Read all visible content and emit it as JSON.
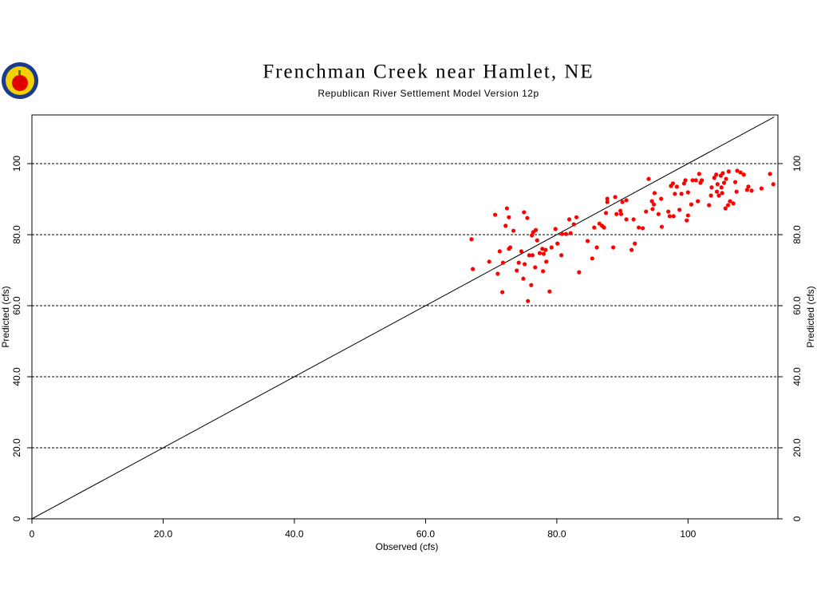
{
  "chart_data": {
    "type": "scatter",
    "title": "Frenchman Creek near Hamlet, NE",
    "subtitle": "Republican River Settlement Model Version 12p",
    "x_label": "Observed (cfs)",
    "y_label": "Predicted (cfs)",
    "color": "#ff0000",
    "grid": true,
    "xlim": [
      0,
      113.7
    ],
    "ylim": [
      0,
      113.7
    ],
    "xticks": [
      0,
      {
        "value": 20,
        "label": "20.0"
      },
      {
        "value": 40,
        "label": "40.0"
      },
      {
        "value": 60,
        "label": "60.0"
      },
      {
        "value": 80,
        "label": "80.0"
      },
      100
    ],
    "yticks": [
      0,
      {
        "value": 20,
        "label": "20.0"
      },
      {
        "value": 40,
        "label": "40.0"
      },
      {
        "value": 60,
        "label": "60.0"
      },
      {
        "value": 80,
        "label": "80.0"
      },
      100
    ],
    "x": [
      67.0,
      67.2,
      69.7,
      70.6,
      71.0,
      71.3,
      71.7,
      71.8,
      72.2,
      72.4,
      72.7,
      72.7,
      72.9,
      73.4,
      73.9,
      74.2,
      74.6,
      74.9,
      75.0,
      75.1,
      75.5,
      75.6,
      75.8,
      76.1,
      76.2,
      76.3,
      76.4,
      76.7,
      76.8,
      77.0,
      77.4,
      77.8,
      77.9,
      78.0,
      78.3,
      78.4,
      78.9,
      79.2,
      79.8,
      80.1,
      80.7,
      80.8,
      81.4,
      81.9,
      82.1,
      82.6,
      83.0,
      83.4,
      84.7,
      85.4,
      85.7,
      86.1,
      86.5,
      86.9,
      87.2,
      87.5,
      87.7,
      87.7,
      88.6,
      88.9,
      89.1,
      89.7,
      89.8,
      90.0,
      90.6,
      90.6,
      91.4,
      91.7,
      91.9,
      92.5,
      93.1,
      93.6,
      94.0,
      94.5,
      94.6,
      94.8,
      94.9,
      95.5,
      95.9,
      96.0,
      97.0,
      97.2,
      97.4,
      97.7,
      97.8,
      98.0,
      98.3,
      98.7,
      99.0,
      99.4,
      99.6,
      99.8,
      100.0,
      100.0,
      100.5,
      100.7,
      101.2,
      101.5,
      101.7,
      101.9,
      102.1,
      103.2,
      103.5,
      103.6,
      104.0,
      104.3,
      104.4,
      104.5,
      104.7,
      105.0,
      105.1,
      105.2,
      105.3,
      105.5,
      105.7,
      105.8,
      106.1,
      106.2,
      106.4,
      106.9,
      107.2,
      107.4,
      107.5,
      108.0,
      108.5,
      109.0,
      109.2,
      109.7,
      111.2,
      112.5,
      113.0
    ],
    "y": [
      78.7,
      70.3,
      72.4,
      85.6,
      69.0,
      75.3,
      63.8,
      72.1,
      82.5,
      87.4,
      84.9,
      76.0,
      76.4,
      81.1,
      69.9,
      72.1,
      75.3,
      67.6,
      86.3,
      71.7,
      84.7,
      61.3,
      74.2,
      65.8,
      79.8,
      74.2,
      80.7,
      70.8,
      81.3,
      78.4,
      74.8,
      76.0,
      69.7,
      74.6,
      75.7,
      72.4,
      64.0,
      76.4,
      81.6,
      77.5,
      74.2,
      80.2,
      80.2,
      84.3,
      80.4,
      82.9,
      84.9,
      69.4,
      78.2,
      73.3,
      82.0,
      76.4,
      83.1,
      82.5,
      82.0,
      86.1,
      89.2,
      90.1,
      76.4,
      90.6,
      85.8,
      86.7,
      85.8,
      89.2,
      84.3,
      89.7,
      75.7,
      84.3,
      77.5,
      82.0,
      81.8,
      86.5,
      95.7,
      89.4,
      87.2,
      88.5,
      91.7,
      85.8,
      90.1,
      82.2,
      86.5,
      85.2,
      93.7,
      94.4,
      85.2,
      91.5,
      93.5,
      87.0,
      91.5,
      94.4,
      95.3,
      84.0,
      85.4,
      91.9,
      88.5,
      95.3,
      95.3,
      89.4,
      97.1,
      94.6,
      95.3,
      88.3,
      91.0,
      93.3,
      96.0,
      96.9,
      92.1,
      94.2,
      91.0,
      96.6,
      93.3,
      91.7,
      97.3,
      94.6,
      87.4,
      95.7,
      88.3,
      97.8,
      89.4,
      88.8,
      94.8,
      92.1,
      98.0,
      97.5,
      96.9,
      92.6,
      93.5,
      92.4,
      93.0,
      97.1,
      94.2
    ]
  }
}
